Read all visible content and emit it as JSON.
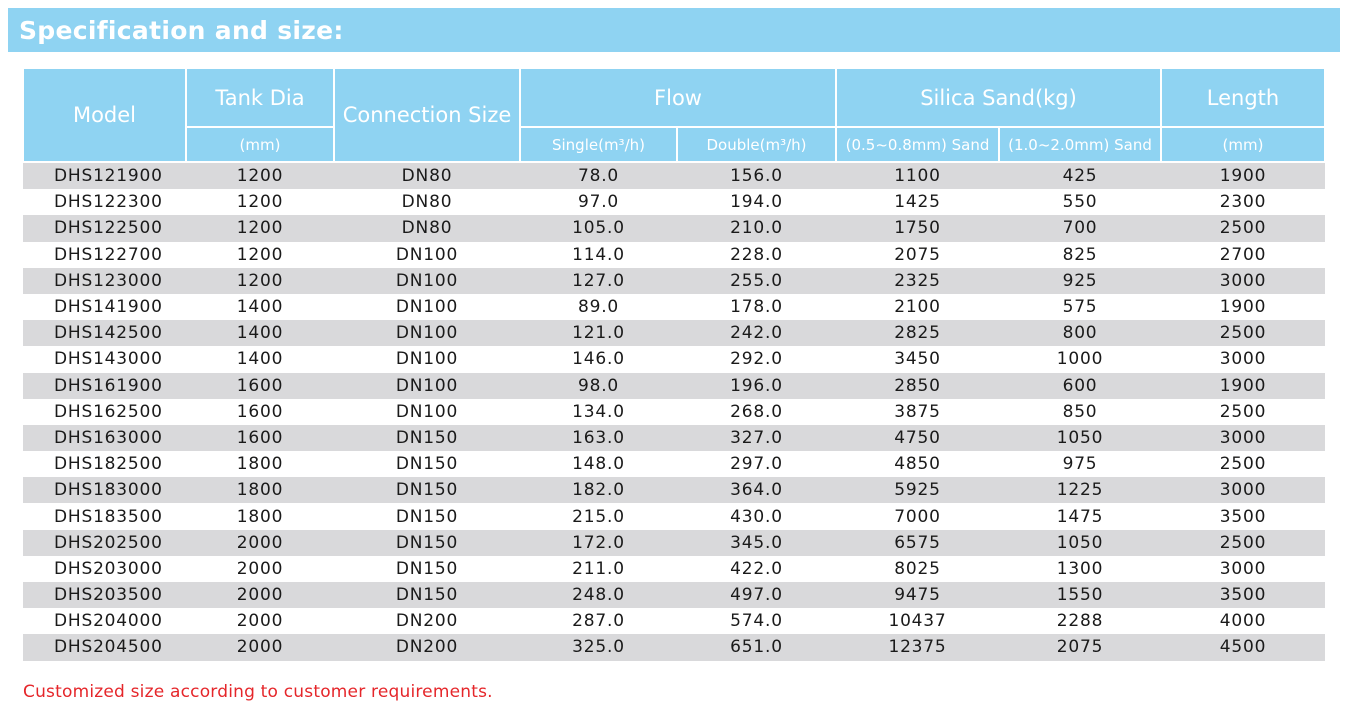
{
  "title": "Specification and size:",
  "table": {
    "headers": {
      "model": "Model",
      "tank_dia": "Tank Dia",
      "tank_dia_unit": "(mm)",
      "connection_size": "Connection Size",
      "flow": "Flow",
      "flow_single": "Single(m³/h)",
      "flow_double": "Double(m³/h)",
      "silica_sand": "Silica Sand(kg)",
      "sand_fine": "(0.5~0.8mm) Sand",
      "sand_coarse": "(1.0~2.0mm) Sand",
      "length": "Length",
      "length_unit": "(mm)"
    },
    "rows": [
      [
        "DHS121900",
        "1200",
        "DN80",
        "78.0",
        "156.0",
        "1100",
        "425",
        "1900"
      ],
      [
        "DHS122300",
        "1200",
        "DN80",
        "97.0",
        "194.0",
        "1425",
        "550",
        "2300"
      ],
      [
        "DHS122500",
        "1200",
        "DN80",
        "105.0",
        "210.0",
        "1750",
        "700",
        "2500"
      ],
      [
        "DHS122700",
        "1200",
        "DN100",
        "114.0",
        "228.0",
        "2075",
        "825",
        "2700"
      ],
      [
        "DHS123000",
        "1200",
        "DN100",
        "127.0",
        "255.0",
        "2325",
        "925",
        "3000"
      ],
      [
        "DHS141900",
        "1400",
        "DN100",
        "89.0",
        "178.0",
        "2100",
        "575",
        "1900"
      ],
      [
        "DHS142500",
        "1400",
        "DN100",
        "121.0",
        "242.0",
        "2825",
        "800",
        "2500"
      ],
      [
        "DHS143000",
        "1400",
        "DN100",
        "146.0",
        "292.0",
        "3450",
        "1000",
        "3000"
      ],
      [
        "DHS161900",
        "1600",
        "DN100",
        "98.0",
        "196.0",
        "2850",
        "600",
        "1900"
      ],
      [
        "DHS162500",
        "1600",
        "DN100",
        "134.0",
        "268.0",
        "3875",
        "850",
        "2500"
      ],
      [
        "DHS163000",
        "1600",
        "DN150",
        "163.0",
        "327.0",
        "4750",
        "1050",
        "3000"
      ],
      [
        "DHS182500",
        "1800",
        "DN150",
        "148.0",
        "297.0",
        "4850",
        "975",
        "2500"
      ],
      [
        "DHS183000",
        "1800",
        "DN150",
        "182.0",
        "364.0",
        "5925",
        "1225",
        "3000"
      ],
      [
        "DHS183500",
        "1800",
        "DN150",
        "215.0",
        "430.0",
        "7000",
        "1475",
        "3500"
      ],
      [
        "DHS202500",
        "2000",
        "DN150",
        "172.0",
        "345.0",
        "6575",
        "1050",
        "2500"
      ],
      [
        "DHS203000",
        "2000",
        "DN150",
        "211.0",
        "422.0",
        "8025",
        "1300",
        "3000"
      ],
      [
        "DHS203500",
        "2000",
        "DN150",
        "248.0",
        "497.0",
        "9475",
        "1550",
        "3500"
      ],
      [
        "DHS204000",
        "2000",
        "DN200",
        "287.0",
        "574.0",
        "10437",
        "2288",
        "4000"
      ],
      [
        "DHS204500",
        "2000",
        "DN200",
        "325.0",
        "651.0",
        "12375",
        "2075",
        "4500"
      ]
    ]
  },
  "note": "Customized size according to customer requirements.",
  "colors": {
    "header_bg": "#8fd3f2",
    "header_text": "#ffffff",
    "stripe": "#d9d9db",
    "note_text": "#e5262a"
  }
}
